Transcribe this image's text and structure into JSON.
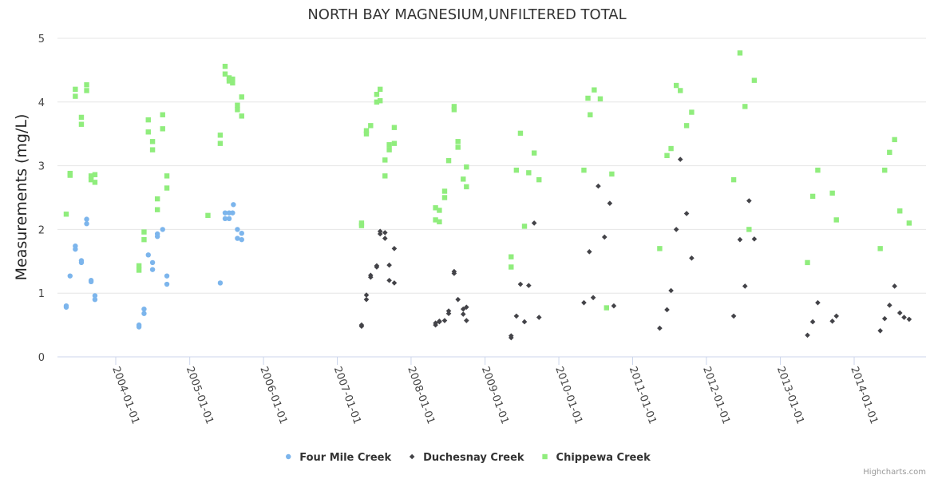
{
  "chart_data": {
    "type": "scatter",
    "title": "NORTH BAY MAGNESIUM,UNFILTERED TOTAL",
    "ylabel": "Measurements (mg/L)",
    "xlabel": "",
    "ylim": [
      0,
      5
    ],
    "y_ticks": [
      "0",
      "1",
      "2",
      "3",
      "4",
      "5"
    ],
    "x_ticks": [
      "2004-01-01",
      "2005-01-01",
      "2006-01-01",
      "2007-01-01",
      "2008-01-01",
      "2009-01-01",
      "2010-01-01",
      "2011-01-01",
      "2012-01-01",
      "2013-01-01",
      "2014-01-01"
    ],
    "grid": "horizontal",
    "legend": "bottom-center",
    "credits": "Highcharts.com",
    "series": [
      {
        "name": "Four Mile Creek",
        "color": "#7cb5ec",
        "marker": "circle",
        "points": [
          [
            "2003-05-01",
            0.78
          ],
          [
            "2003-05-01",
            0.8
          ],
          [
            "2003-05-20",
            1.27
          ],
          [
            "2003-06-15",
            1.69
          ],
          [
            "2003-06-15",
            1.74
          ],
          [
            "2003-07-15",
            1.48
          ],
          [
            "2003-07-15",
            1.51
          ],
          [
            "2003-08-10",
            2.09
          ],
          [
            "2003-08-10",
            2.16
          ],
          [
            "2003-09-01",
            1.18
          ],
          [
            "2003-09-01",
            1.2
          ],
          [
            "2003-09-20",
            0.9
          ],
          [
            "2003-09-20",
            0.96
          ],
          [
            "2004-04-25",
            0.47
          ],
          [
            "2004-04-25",
            0.5
          ],
          [
            "2004-05-20",
            0.68
          ],
          [
            "2004-05-20",
            0.75
          ],
          [
            "2004-06-10",
            1.6
          ],
          [
            "2004-07-01",
            1.37
          ],
          [
            "2004-07-01",
            1.48
          ],
          [
            "2004-07-25",
            1.89
          ],
          [
            "2004-07-25",
            1.93
          ],
          [
            "2004-08-20",
            2.0
          ],
          [
            "2004-09-10",
            1.14
          ],
          [
            "2004-09-10",
            1.27
          ],
          [
            "2005-06-01",
            1.16
          ],
          [
            "2005-06-25",
            2.17
          ],
          [
            "2005-06-25",
            2.26
          ],
          [
            "2005-07-15",
            2.17
          ],
          [
            "2005-07-15",
            2.26
          ],
          [
            "2005-08-01",
            2.26
          ],
          [
            "2005-08-05",
            2.39
          ],
          [
            "2005-08-25",
            1.86
          ],
          [
            "2005-08-25",
            2.0
          ],
          [
            "2005-09-15",
            1.84
          ],
          [
            "2005-09-15",
            1.94
          ]
        ]
      },
      {
        "name": "Duchesnay Creek",
        "color": "#434348",
        "marker": "diamond",
        "points": [
          [
            "2007-05-01",
            0.48
          ],
          [
            "2007-05-01",
            0.5
          ],
          [
            "2007-05-25",
            0.9
          ],
          [
            "2007-05-25",
            0.97
          ],
          [
            "2007-06-15",
            1.25
          ],
          [
            "2007-06-15",
            1.28
          ],
          [
            "2007-07-15",
            1.41
          ],
          [
            "2007-07-15",
            1.43
          ],
          [
            "2007-08-01",
            1.93
          ],
          [
            "2007-08-01",
            1.97
          ],
          [
            "2007-08-25",
            1.86
          ],
          [
            "2007-08-25",
            1.95
          ],
          [
            "2007-09-15",
            1.2
          ],
          [
            "2007-09-15",
            1.44
          ],
          [
            "2007-10-10",
            1.16
          ],
          [
            "2007-10-10",
            1.7
          ],
          [
            "2008-05-01",
            0.5
          ],
          [
            "2008-05-01",
            0.53
          ],
          [
            "2008-05-20",
            0.55
          ],
          [
            "2008-05-20",
            0.56
          ],
          [
            "2008-06-15",
            0.57
          ],
          [
            "2008-07-05",
            0.68
          ],
          [
            "2008-07-05",
            0.72
          ],
          [
            "2008-08-01",
            1.31
          ],
          [
            "2008-08-01",
            1.34
          ],
          [
            "2008-08-20",
            0.9
          ],
          [
            "2008-09-15",
            0.67
          ],
          [
            "2008-09-15",
            0.75
          ],
          [
            "2008-10-01",
            0.57
          ],
          [
            "2008-10-01",
            0.78
          ],
          [
            "2009-05-10",
            0.3
          ],
          [
            "2009-05-10",
            0.33
          ],
          [
            "2009-06-05",
            0.64
          ],
          [
            "2009-06-25",
            1.14
          ],
          [
            "2009-07-15",
            0.55
          ],
          [
            "2009-08-05",
            1.12
          ],
          [
            "2009-09-01",
            2.1
          ],
          [
            "2009-09-25",
            0.62
          ],
          [
            "2010-05-05",
            0.85
          ],
          [
            "2010-06-01",
            1.65
          ],
          [
            "2010-06-20",
            0.93
          ],
          [
            "2010-07-15",
            2.68
          ],
          [
            "2010-08-15",
            1.88
          ],
          [
            "2010-09-10",
            2.41
          ],
          [
            "2010-09-30",
            0.8
          ],
          [
            "2011-05-15",
            0.45
          ],
          [
            "2011-06-20",
            0.74
          ],
          [
            "2011-07-10",
            1.04
          ],
          [
            "2011-08-05",
            2.0
          ],
          [
            "2011-08-25",
            3.1
          ],
          [
            "2011-09-25",
            2.25
          ],
          [
            "2011-10-20",
            1.55
          ],
          [
            "2012-05-15",
            0.64
          ],
          [
            "2012-06-15",
            1.84
          ],
          [
            "2012-07-10",
            1.11
          ],
          [
            "2012-07-30",
            2.45
          ],
          [
            "2012-08-25",
            1.85
          ],
          [
            "2013-05-15",
            0.34
          ],
          [
            "2013-06-10",
            0.55
          ],
          [
            "2013-07-05",
            0.85
          ],
          [
            "2013-09-15",
            0.56
          ],
          [
            "2013-10-05",
            0.64
          ],
          [
            "2014-05-10",
            0.41
          ],
          [
            "2014-06-01",
            0.6
          ],
          [
            "2014-06-25",
            0.81
          ],
          [
            "2014-07-20",
            1.11
          ],
          [
            "2014-08-15",
            0.69
          ],
          [
            "2014-09-05",
            0.62
          ],
          [
            "2014-09-30",
            0.59
          ]
        ]
      },
      {
        "name": "Chippewa Creek",
        "color": "#90ed7d",
        "marker": "square",
        "points": [
          [
            "2003-05-01",
            2.24
          ],
          [
            "2003-05-20",
            2.85
          ],
          [
            "2003-05-20",
            2.88
          ],
          [
            "2003-06-15",
            4.09
          ],
          [
            "2003-06-15",
            4.2
          ],
          [
            "2003-07-15",
            3.65
          ],
          [
            "2003-07-15",
            3.76
          ],
          [
            "2003-08-10",
            4.18
          ],
          [
            "2003-08-10",
            4.27
          ],
          [
            "2003-09-01",
            2.78
          ],
          [
            "2003-09-01",
            2.84
          ],
          [
            "2003-09-20",
            2.74
          ],
          [
            "2003-09-20",
            2.86
          ],
          [
            "2004-04-25",
            1.36
          ],
          [
            "2004-04-25",
            1.43
          ],
          [
            "2004-05-20",
            1.84
          ],
          [
            "2004-05-20",
            1.96
          ],
          [
            "2004-06-10",
            3.53
          ],
          [
            "2004-06-10",
            3.72
          ],
          [
            "2004-07-01",
            3.25
          ],
          [
            "2004-07-01",
            3.38
          ],
          [
            "2004-07-25",
            2.31
          ],
          [
            "2004-07-25",
            2.48
          ],
          [
            "2004-08-20",
            3.58
          ],
          [
            "2004-08-20",
            3.8
          ],
          [
            "2004-09-10",
            2.65
          ],
          [
            "2004-09-10",
            2.84
          ],
          [
            "2005-04-01",
            2.22
          ],
          [
            "2005-06-01",
            3.35
          ],
          [
            "2005-06-01",
            3.48
          ],
          [
            "2005-06-25",
            4.44
          ],
          [
            "2005-06-25",
            4.56
          ],
          [
            "2005-07-15",
            4.33
          ],
          [
            "2005-07-15",
            4.38
          ],
          [
            "2005-08-01",
            4.3
          ],
          [
            "2005-08-01",
            4.36
          ],
          [
            "2005-08-25",
            3.88
          ],
          [
            "2005-08-25",
            3.95
          ],
          [
            "2005-09-15",
            3.78
          ],
          [
            "2005-09-15",
            4.08
          ],
          [
            "2007-05-01",
            2.06
          ],
          [
            "2007-05-01",
            2.1
          ],
          [
            "2007-05-25",
            3.5
          ],
          [
            "2007-05-25",
            3.55
          ],
          [
            "2007-06-15",
            3.63
          ],
          [
            "2007-07-15",
            4.0
          ],
          [
            "2007-07-15",
            4.12
          ],
          [
            "2007-08-01",
            4.02
          ],
          [
            "2007-08-01",
            4.2
          ],
          [
            "2007-08-25",
            2.84
          ],
          [
            "2007-08-25",
            3.09
          ],
          [
            "2007-09-15",
            3.25
          ],
          [
            "2007-09-15",
            3.33
          ],
          [
            "2007-10-10",
            3.35
          ],
          [
            "2007-10-10",
            3.6
          ],
          [
            "2008-05-01",
            2.15
          ],
          [
            "2008-05-01",
            2.34
          ],
          [
            "2008-05-20",
            2.12
          ],
          [
            "2008-05-20",
            2.3
          ],
          [
            "2008-06-15",
            2.5
          ],
          [
            "2008-06-15",
            2.6
          ],
          [
            "2008-07-05",
            3.08
          ],
          [
            "2008-08-01",
            3.88
          ],
          [
            "2008-08-01",
            3.93
          ],
          [
            "2008-08-20",
            3.29
          ],
          [
            "2008-08-20",
            3.38
          ],
          [
            "2008-09-15",
            2.79
          ],
          [
            "2008-10-01",
            2.67
          ],
          [
            "2008-10-01",
            2.98
          ],
          [
            "2009-05-10",
            1.41
          ],
          [
            "2009-05-10",
            1.57
          ],
          [
            "2009-06-05",
            2.93
          ],
          [
            "2009-06-25",
            3.51
          ],
          [
            "2009-07-15",
            2.05
          ],
          [
            "2009-08-05",
            2.89
          ],
          [
            "2009-09-01",
            3.2
          ],
          [
            "2009-09-25",
            2.78
          ],
          [
            "2010-05-05",
            2.93
          ],
          [
            "2010-05-25",
            4.06
          ],
          [
            "2010-06-05",
            3.8
          ],
          [
            "2010-06-25",
            4.19
          ],
          [
            "2010-07-25",
            4.05
          ],
          [
            "2010-08-25",
            0.77
          ],
          [
            "2010-09-20",
            2.87
          ],
          [
            "2011-05-15",
            1.7
          ],
          [
            "2011-06-20",
            3.16
          ],
          [
            "2011-07-10",
            3.27
          ],
          [
            "2011-08-05",
            4.26
          ],
          [
            "2011-08-25",
            4.18
          ],
          [
            "2011-09-25",
            3.63
          ],
          [
            "2011-10-20",
            3.84
          ],
          [
            "2012-05-15",
            2.78
          ],
          [
            "2012-06-15",
            4.77
          ],
          [
            "2012-07-10",
            3.93
          ],
          [
            "2012-07-30",
            2.0
          ],
          [
            "2012-08-25",
            4.34
          ],
          [
            "2013-05-15",
            1.48
          ],
          [
            "2013-06-10",
            2.52
          ],
          [
            "2013-07-05",
            2.93
          ],
          [
            "2013-09-15",
            2.57
          ],
          [
            "2013-10-05",
            2.15
          ],
          [
            "2014-05-10",
            1.7
          ],
          [
            "2014-06-01",
            2.93
          ],
          [
            "2014-06-25",
            3.21
          ],
          [
            "2014-07-20",
            3.41
          ],
          [
            "2014-08-15",
            2.29
          ],
          [
            "2014-09-30",
            2.1
          ]
        ]
      }
    ]
  }
}
